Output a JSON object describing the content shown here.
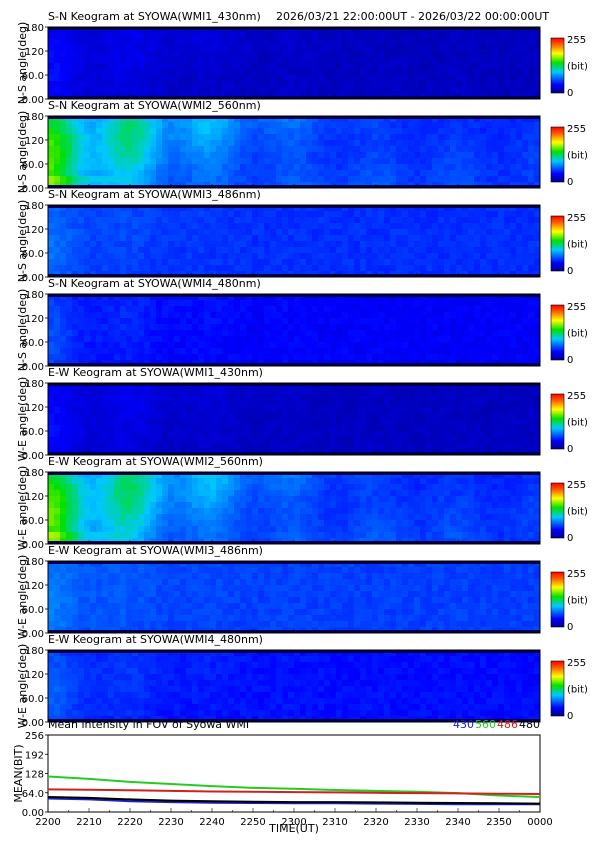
{
  "header": {
    "first_title": "S-N Keogram at SYOWA(WMI1_430nm)",
    "time_range": "2026/03/21 22:00:00UT - 2026/03/22 00:00:00UT"
  },
  "keograms": [
    {
      "title": "S-N Keogram at SYOWA(WMI1_430nm)",
      "ylabel": "N-S angle(deg)",
      "wl": "430",
      "base": 0.06,
      "peak": 0.16,
      "decay": 0.65
    },
    {
      "title": "S-N Keogram at SYOWA(WMI2_560nm)",
      "ylabel": "N-S angle(deg)",
      "wl": "560",
      "base": 0.17,
      "peak": 0.6,
      "decay": 0.55
    },
    {
      "title": "S-N Keogram at SYOWA(WMI3_486nm)",
      "ylabel": "N-S angle(deg)",
      "wl": "486",
      "base": 0.2,
      "peak": 0.28,
      "decay": 1.4
    },
    {
      "title": "S-N Keogram at SYOWA(WMI4_480nm)",
      "ylabel": "N-S angle(deg)",
      "wl": "480",
      "base": 0.14,
      "peak": 0.24,
      "decay": 1.0
    },
    {
      "title": "E-W Keogram at SYOWA(WMI1_430nm)",
      "ylabel": "W-E angle(deg)",
      "wl": "430",
      "base": 0.06,
      "peak": 0.16,
      "decay": 0.65
    },
    {
      "title": "E-W Keogram at SYOWA(WMI2_560nm)",
      "ylabel": "W-E angle(deg)",
      "wl": "560",
      "base": 0.17,
      "peak": 0.62,
      "decay": 0.55
    },
    {
      "title": "E-W Keogram at SYOWA(WMI3_486nm)",
      "ylabel": "W-E angle(deg)",
      "wl": "486",
      "base": 0.22,
      "peak": 0.3,
      "decay": 1.4
    },
    {
      "title": "E-W Keogram at SYOWA(WMI4_480nm)",
      "ylabel": "W-E angle(deg)",
      "wl": "480",
      "base": 0.16,
      "peak": 0.26,
      "decay": 1.0
    }
  ],
  "colorbar": {
    "max": "255",
    "unit": "(bit)",
    "min": "0"
  },
  "keogram_yticks": [
    "0.00",
    "60.0",
    "120",
    "180"
  ],
  "chart_data": {
    "type": "line",
    "title": "Mean intensity in FOV of Syowa WMI",
    "xlabel": "TIME(UT)",
    "ylabel": "MEAN(BIT)",
    "ylim": [
      0,
      256
    ],
    "xticks": [
      "2200",
      "2210",
      "2220",
      "2230",
      "2240",
      "2250",
      "2300",
      "2310",
      "2320",
      "2330",
      "2340",
      "2350",
      "0000"
    ],
    "yticks": [
      "0.00",
      "64.0",
      "128",
      "192",
      "256"
    ],
    "x": [
      0,
      10,
      20,
      30,
      40,
      50,
      60,
      70,
      80,
      90,
      100,
      110,
      120
    ],
    "series": [
      {
        "name": "430",
        "color": "#1a22c8",
        "values": [
          45,
          42,
          36,
          33,
          31,
          30,
          29,
          29,
          28,
          27,
          26,
          26,
          26
        ]
      },
      {
        "name": "560",
        "color": "#22cc22",
        "values": [
          118,
          110,
          100,
          93,
          86,
          80,
          77,
          73,
          70,
          67,
          63,
          55,
          50
        ]
      },
      {
        "name": "486",
        "color": "#d02020",
        "values": [
          75,
          74,
          72,
          70,
          68,
          67,
          66,
          65,
          64,
          63,
          62,
          61,
          60
        ]
      },
      {
        "name": "480",
        "color": "#000000",
        "values": [
          50,
          47,
          42,
          38,
          36,
          34,
          33,
          33,
          32,
          31,
          30,
          29,
          28
        ]
      }
    ]
  }
}
